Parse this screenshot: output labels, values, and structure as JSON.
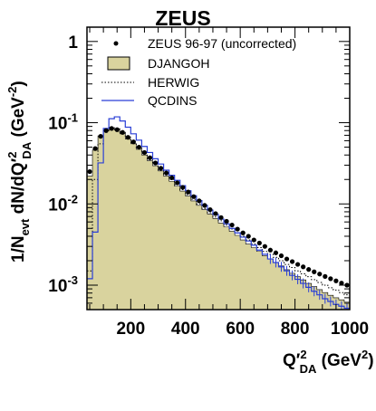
{
  "chart_data": {
    "type": "line",
    "title": "ZEUS",
    "xlabel": {
      "main": "Q′",
      "sup": "2",
      "sub": "DA",
      "unit": " (GeV",
      "unit_sup": "2",
      "unit_close": ")"
    },
    "ylabel": {
      "a": "1/N",
      "a_sub": "evt",
      "b": " dN/dQ′",
      "b_sup": "2",
      "b_sub": "DA",
      "c": " (GeV",
      "c_sup": "-2",
      "d": ")"
    },
    "x_range": [
      40,
      1000
    ],
    "y_range": [
      0.0005,
      1.5
    ],
    "y_scale": "log",
    "x_ticks": [
      "200",
      "400",
      "600",
      "800",
      "1000"
    ],
    "x_tick_values": [
      200,
      400,
      600,
      800,
      1000
    ],
    "y_ticks": [
      {
        "value": 1,
        "base": "1",
        "exp": ""
      },
      {
        "value": 0.1,
        "base": "10",
        "exp": "-1"
      },
      {
        "value": 0.01,
        "base": "10",
        "exp": "-2"
      },
      {
        "value": 0.001,
        "base": "10",
        "exp": "-3"
      }
    ],
    "bin_edges": [
      40,
      60,
      80,
      100,
      120,
      140,
      160,
      180,
      200,
      220,
      240,
      260,
      280,
      300,
      320,
      340,
      360,
      380,
      400,
      420,
      440,
      460,
      480,
      500,
      520,
      540,
      560,
      580,
      600,
      620,
      640,
      660,
      680,
      700,
      720,
      740,
      760,
      780,
      800,
      820,
      840,
      860,
      880,
      900,
      920,
      940,
      960,
      980,
      1000
    ],
    "series": [
      {
        "name": "ZEUS 96-97 (uncorrected)",
        "kind": "points",
        "color": "#000000",
        "values": [
          0.025,
          0.048,
          0.068,
          0.08,
          0.085,
          0.082,
          0.076,
          0.066,
          0.058,
          0.05,
          0.043,
          0.037,
          0.032,
          0.0275,
          0.024,
          0.021,
          0.0182,
          0.016,
          0.014,
          0.0123,
          0.0109,
          0.0096,
          0.0085,
          0.0076,
          0.0068,
          0.0061,
          0.0055,
          0.0049,
          0.0044,
          0.004,
          0.0036,
          0.0033,
          0.003,
          0.0027,
          0.0025,
          0.0023,
          0.0021,
          0.00195,
          0.0018,
          0.00168,
          0.00156,
          0.00146,
          0.00137,
          0.00128,
          0.0012,
          0.00113,
          0.00106,
          0.001
        ]
      },
      {
        "name": "DJANGOH",
        "kind": "filled",
        "color": "#d9d39e",
        "stroke": "#000000",
        "values": [
          0.022,
          0.046,
          0.069,
          0.082,
          0.086,
          0.081,
          0.073,
          0.063,
          0.055,
          0.047,
          0.04,
          0.034,
          0.0295,
          0.0255,
          0.022,
          0.019,
          0.0165,
          0.0144,
          0.0125,
          0.0109,
          0.0096,
          0.0085,
          0.0075,
          0.0066,
          0.0058,
          0.0052,
          0.0046,
          0.0041,
          0.0036,
          0.0032,
          0.0029,
          0.0026,
          0.0023,
          0.0021,
          0.0019,
          0.00172,
          0.00155,
          0.0014,
          0.00127,
          0.00116,
          0.00105,
          0.00096,
          0.00088,
          0.00081,
          0.00075,
          0.0007,
          0.00066,
          0.00062
        ]
      },
      {
        "name": "HERWIG",
        "kind": "dotted",
        "color": "#000000",
        "values": [
          0.0015,
          0.02,
          0.055,
          0.08,
          0.088,
          0.084,
          0.076,
          0.066,
          0.057,
          0.049,
          0.042,
          0.036,
          0.031,
          0.0265,
          0.023,
          0.02,
          0.0173,
          0.015,
          0.013,
          0.0114,
          0.01,
          0.0088,
          0.0078,
          0.0069,
          0.0062,
          0.0055,
          0.0049,
          0.0044,
          0.004,
          0.0036,
          0.0032,
          0.0029,
          0.0026,
          0.0024,
          0.0022,
          0.002,
          0.0018,
          0.00165,
          0.0015,
          0.00138,
          0.00127,
          0.00117,
          0.00108,
          0.001,
          0.00093,
          0.00087,
          0.00081,
          0.00076
        ]
      },
      {
        "name": "QCDINS",
        "kind": "step",
        "color": "#2a3fd6",
        "values": [
          0.0012,
          0.0045,
          0.032,
          0.085,
          0.112,
          0.118,
          0.105,
          0.088,
          0.073,
          0.061,
          0.051,
          0.043,
          0.036,
          0.031,
          0.026,
          0.0225,
          0.0195,
          0.0168,
          0.0145,
          0.0126,
          0.011,
          0.0096,
          0.0084,
          0.0074,
          0.0065,
          0.0057,
          0.005,
          0.0044,
          0.0039,
          0.0035,
          0.0031,
          0.0027,
          0.0024,
          0.0021,
          0.0019,
          0.00168,
          0.0015,
          0.00132,
          0.00118,
          0.00105,
          0.00094,
          0.00084,
          0.00076,
          0.00068,
          0.00063,
          0.00058,
          0.00055,
          0.00052
        ]
      }
    ],
    "legend_position": "top-right"
  }
}
